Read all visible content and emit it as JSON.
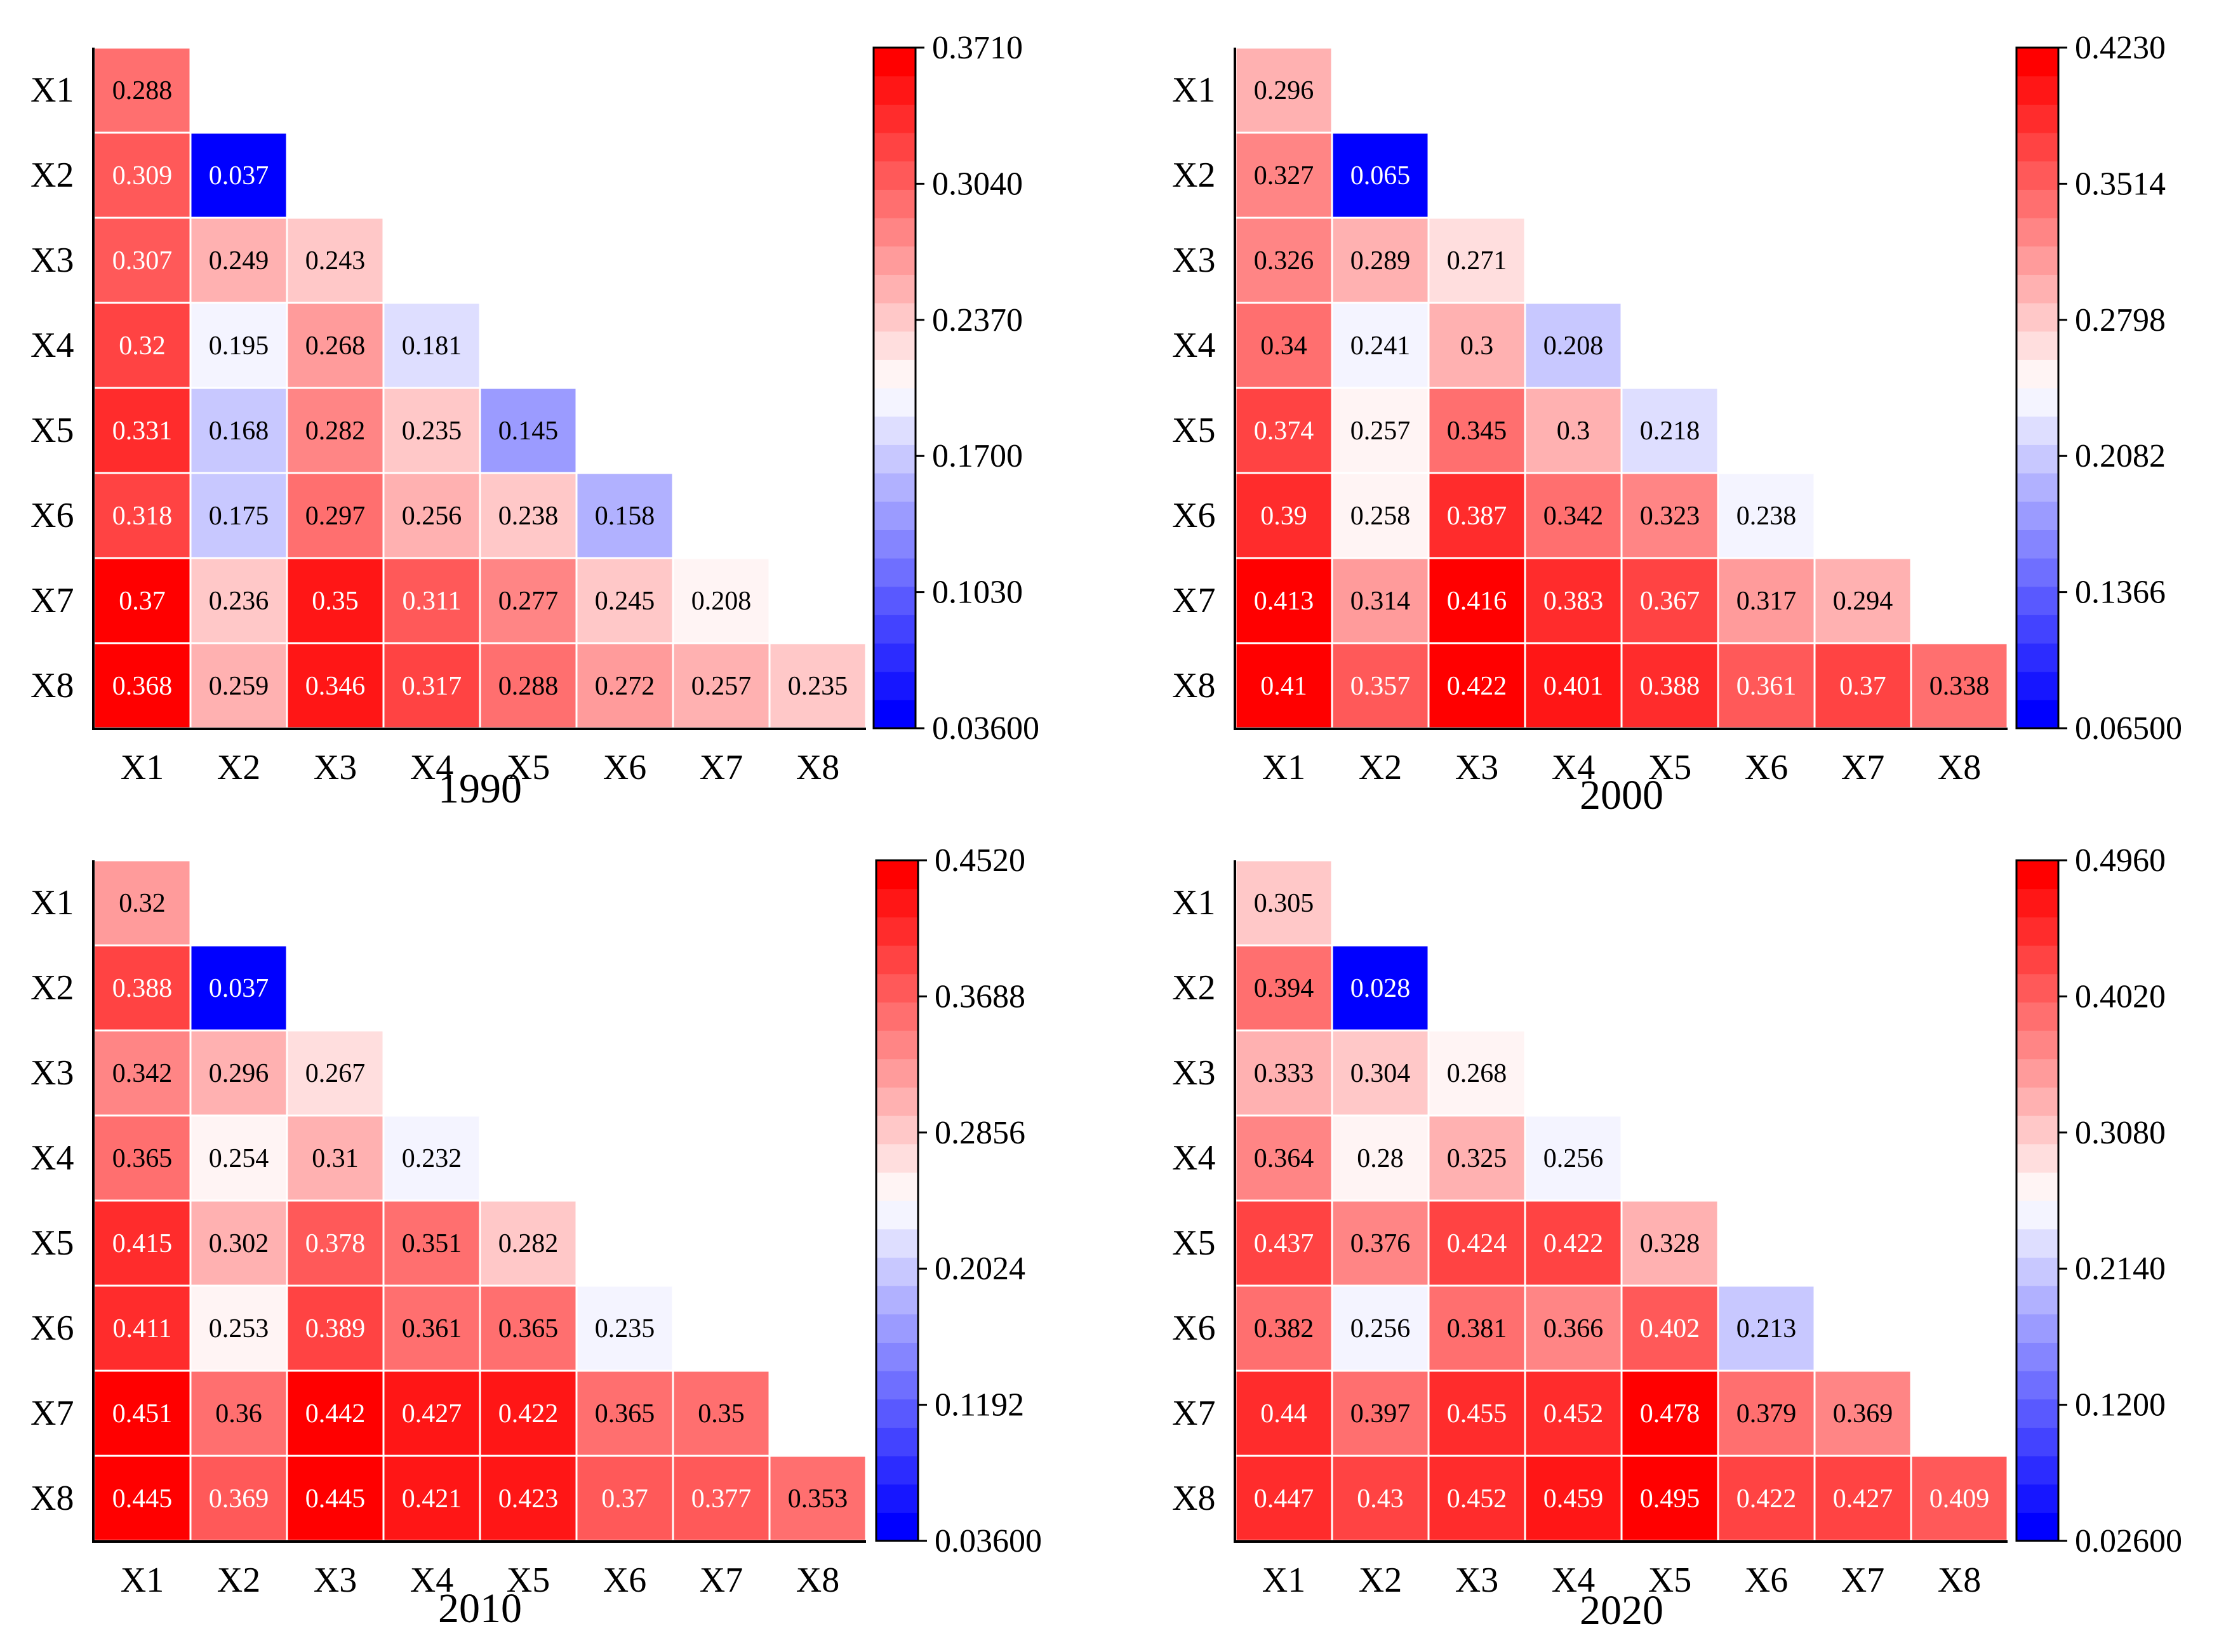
{
  "chart_data": [
    {
      "type": "heatmap",
      "title": "1990",
      "row_labels": [
        "X1",
        "X2",
        "X3",
        "X4",
        "X5",
        "X6",
        "X7",
        "X8"
      ],
      "col_labels": [
        "X1",
        "X2",
        "X3",
        "X4",
        "X5",
        "X6",
        "X7",
        "X8"
      ],
      "rows": [
        [
          "0.288"
        ],
        [
          "0.309",
          "0.037"
        ],
        [
          "0.307",
          "0.249",
          "0.243"
        ],
        [
          "0.32",
          "0.195",
          "0.268",
          "0.181"
        ],
        [
          "0.331",
          "0.168",
          "0.282",
          "0.235",
          "0.145"
        ],
        [
          "0.318",
          "0.175",
          "0.297",
          "0.256",
          "0.238",
          "0.158"
        ],
        [
          "0.37",
          "0.236",
          "0.35",
          "0.311",
          "0.277",
          "0.245",
          "0.208"
        ],
        [
          "0.368",
          "0.259",
          "0.346",
          "0.317",
          "0.288",
          "0.272",
          "0.257",
          "0.235"
        ]
      ],
      "colorbar": {
        "min": 0.036,
        "max": 0.371,
        "tick_labels": [
          "0.03600",
          "0.1030",
          "0.1700",
          "0.2370",
          "0.3040",
          "0.3710"
        ],
        "colors": {
          "low": "#0000ff",
          "mid": "#ffffff",
          "high": "#ff0000"
        }
      }
    },
    {
      "type": "heatmap",
      "title": "2000",
      "row_labels": [
        "X1",
        "X2",
        "X3",
        "X4",
        "X5",
        "X6",
        "X7",
        "X8"
      ],
      "col_labels": [
        "X1",
        "X2",
        "X3",
        "X4",
        "X5",
        "X6",
        "X7",
        "X8"
      ],
      "rows": [
        [
          "0.296"
        ],
        [
          "0.327",
          "0.065"
        ],
        [
          "0.326",
          "0.289",
          "0.271"
        ],
        [
          "0.34",
          "0.241",
          "0.3",
          "0.208"
        ],
        [
          "0.374",
          "0.257",
          "0.345",
          "0.3",
          "0.218"
        ],
        [
          "0.39",
          "0.258",
          "0.387",
          "0.342",
          "0.323",
          "0.238"
        ],
        [
          "0.413",
          "0.314",
          "0.416",
          "0.383",
          "0.367",
          "0.317",
          "0.294"
        ],
        [
          "0.41",
          "0.357",
          "0.422",
          "0.401",
          "0.388",
          "0.361",
          "0.37",
          "0.338"
        ]
      ],
      "colorbar": {
        "min": 0.065,
        "max": 0.423,
        "tick_labels": [
          "0.06500",
          "0.1366",
          "0.2082",
          "0.2798",
          "0.3514",
          "0.4230"
        ],
        "colors": {
          "low": "#0000ff",
          "mid": "#ffffff",
          "high": "#ff0000"
        }
      }
    },
    {
      "type": "heatmap",
      "title": "2010",
      "row_labels": [
        "X1",
        "X2",
        "X3",
        "X4",
        "X5",
        "X6",
        "X7",
        "X8"
      ],
      "col_labels": [
        "X1",
        "X2",
        "X3",
        "X4",
        "X5",
        "X6",
        "X7",
        "X8"
      ],
      "rows": [
        [
          "0.32"
        ],
        [
          "0.388",
          "0.037"
        ],
        [
          "0.342",
          "0.296",
          "0.267"
        ],
        [
          "0.365",
          "0.254",
          "0.31",
          "0.232"
        ],
        [
          "0.415",
          "0.302",
          "0.378",
          "0.351",
          "0.282"
        ],
        [
          "0.411",
          "0.253",
          "0.389",
          "0.361",
          "0.365",
          "0.235"
        ],
        [
          "0.451",
          "0.36",
          "0.442",
          "0.427",
          "0.422",
          "0.365",
          "0.35"
        ],
        [
          "0.445",
          "0.369",
          "0.445",
          "0.421",
          "0.423",
          "0.37",
          "0.377",
          "0.353"
        ]
      ],
      "colorbar": {
        "min": 0.036,
        "max": 0.452,
        "tick_labels": [
          "0.03600",
          "0.1192",
          "0.2024",
          "0.2856",
          "0.3688",
          "0.4520"
        ],
        "colors": {
          "low": "#0000ff",
          "mid": "#ffffff",
          "high": "#ff0000"
        }
      }
    },
    {
      "type": "heatmap",
      "title": "2020",
      "row_labels": [
        "X1",
        "X2",
        "X3",
        "X4",
        "X5",
        "X6",
        "X7",
        "X8"
      ],
      "col_labels": [
        "X1",
        "X2",
        "X3",
        "X4",
        "X5",
        "X6",
        "X7",
        "X8"
      ],
      "rows": [
        [
          "0.305"
        ],
        [
          "0.394",
          "0.028"
        ],
        [
          "0.333",
          "0.304",
          "0.268"
        ],
        [
          "0.364",
          "0.28",
          "0.325",
          "0.256"
        ],
        [
          "0.437",
          "0.376",
          "0.424",
          "0.422",
          "0.328"
        ],
        [
          "0.382",
          "0.256",
          "0.381",
          "0.366",
          "0.402",
          "0.213"
        ],
        [
          "0.44",
          "0.397",
          "0.455",
          "0.452",
          "0.478",
          "0.379",
          "0.369"
        ],
        [
          "0.447",
          "0.43",
          "0.452",
          "0.459",
          "0.495",
          "0.422",
          "0.427",
          "0.409"
        ]
      ],
      "colorbar": {
        "min": 0.026,
        "max": 0.496,
        "tick_labels": [
          "0.02600",
          "0.1200",
          "0.2140",
          "0.3080",
          "0.4020",
          "0.4960"
        ],
        "colors": {
          "low": "#0000ff",
          "mid": "#ffffff",
          "high": "#ff0000"
        }
      }
    }
  ]
}
